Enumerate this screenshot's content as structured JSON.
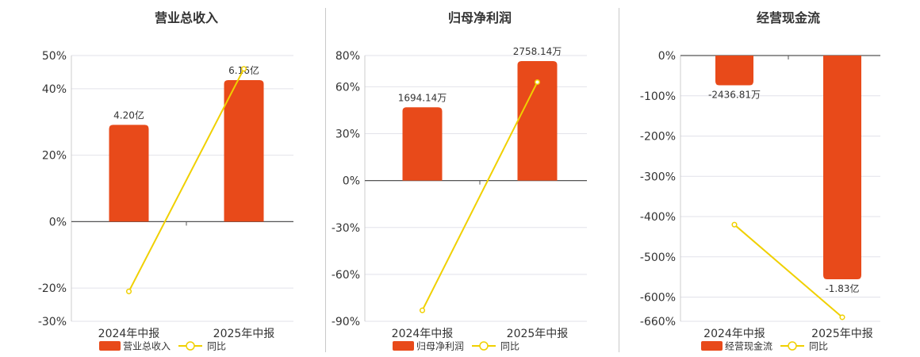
{
  "chart_data": [
    {
      "type": "bar",
      "title": "营业总收入",
      "categories": [
        "2024年中报",
        "2025年中报"
      ],
      "bar_series": {
        "name": "营业总收入",
        "values": [
          4.2,
          6.16
        ],
        "labels": [
          "4.20亿",
          "6.16亿"
        ]
      },
      "line_series": {
        "name": "同比",
        "values": [
          -21,
          46
        ]
      },
      "yticks": [
        "50%",
        "40%",
        "20%",
        "0%",
        "-20%",
        "-30%"
      ],
      "ylim": [
        -30,
        50
      ],
      "grid": true,
      "legend": "bottom"
    },
    {
      "type": "bar",
      "title": "归母净利润",
      "categories": [
        "2024年中报",
        "2025年中报"
      ],
      "bar_series": {
        "name": "归母净利润",
        "values": [
          1694.14,
          2758.14
        ],
        "labels": [
          "1694.14万",
          "2758.14万"
        ]
      },
      "line_series": {
        "name": "同比",
        "values": [
          -83,
          63
        ]
      },
      "yticks": [
        "80%",
        "60%",
        "30%",
        "0%",
        "-30%",
        "-60%",
        "-90%"
      ],
      "ylim": [
        -90,
        80
      ],
      "grid": true,
      "legend": "bottom"
    },
    {
      "type": "bar",
      "title": "经营现金流",
      "categories": [
        "2024年中报",
        "2025年中报"
      ],
      "bar_series": {
        "name": "经营现金流",
        "values": [
          -2436.81,
          -18300
        ],
        "labels": [
          "-2436.81万",
          "-1.83亿"
        ]
      },
      "line_series": {
        "name": "同比",
        "values": [
          -420,
          -650
        ]
      },
      "yticks": [
        "0%",
        "-100%",
        "-200%",
        "-300%",
        "-400%",
        "-500%",
        "-600%",
        "-660%"
      ],
      "ylim": [
        -660,
        0
      ],
      "grid": true,
      "legend": "bottom"
    }
  ],
  "colors": {
    "bar": "#e84a1a",
    "line": "#f0d000",
    "grid": "#e2e2ea",
    "axis": "#555555"
  }
}
